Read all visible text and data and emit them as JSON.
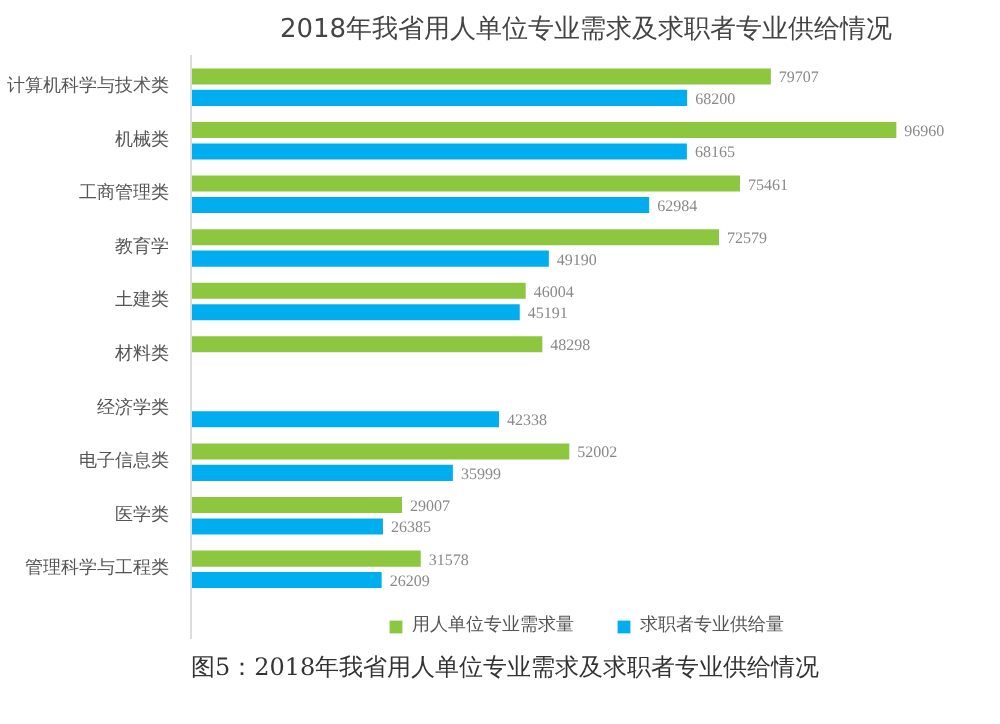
{
  "chart_data": {
    "type": "bar",
    "orientation": "horizontal",
    "title": "2018年我省用人单位专业需求及求职者专业供给情况",
    "categories": [
      "计算机科学与技术类",
      "机械类",
      "工商管理类",
      "教育学",
      "土建类",
      "材料类",
      "经济学类",
      "电子信息类",
      "医学类",
      "管理科学与工程类"
    ],
    "series": [
      {
        "name": "用人单位专业需求量",
        "color": "#8dc63f",
        "values": [
          79707,
          96960,
          75461,
          72579,
          46004,
          48298,
          null,
          52002,
          29007,
          31578
        ]
      },
      {
        "name": "求职者专业供给量",
        "color": "#00aeef",
        "values": [
          68200,
          68165,
          62984,
          49190,
          45191,
          null,
          42338,
          35999,
          26385,
          26209
        ]
      }
    ],
    "data_labels": true,
    "legend": "bottom",
    "grid": false,
    "annotations": [
      "图5：2018年我省用人单位专业需求及求职者专业供给情况"
    ]
  }
}
